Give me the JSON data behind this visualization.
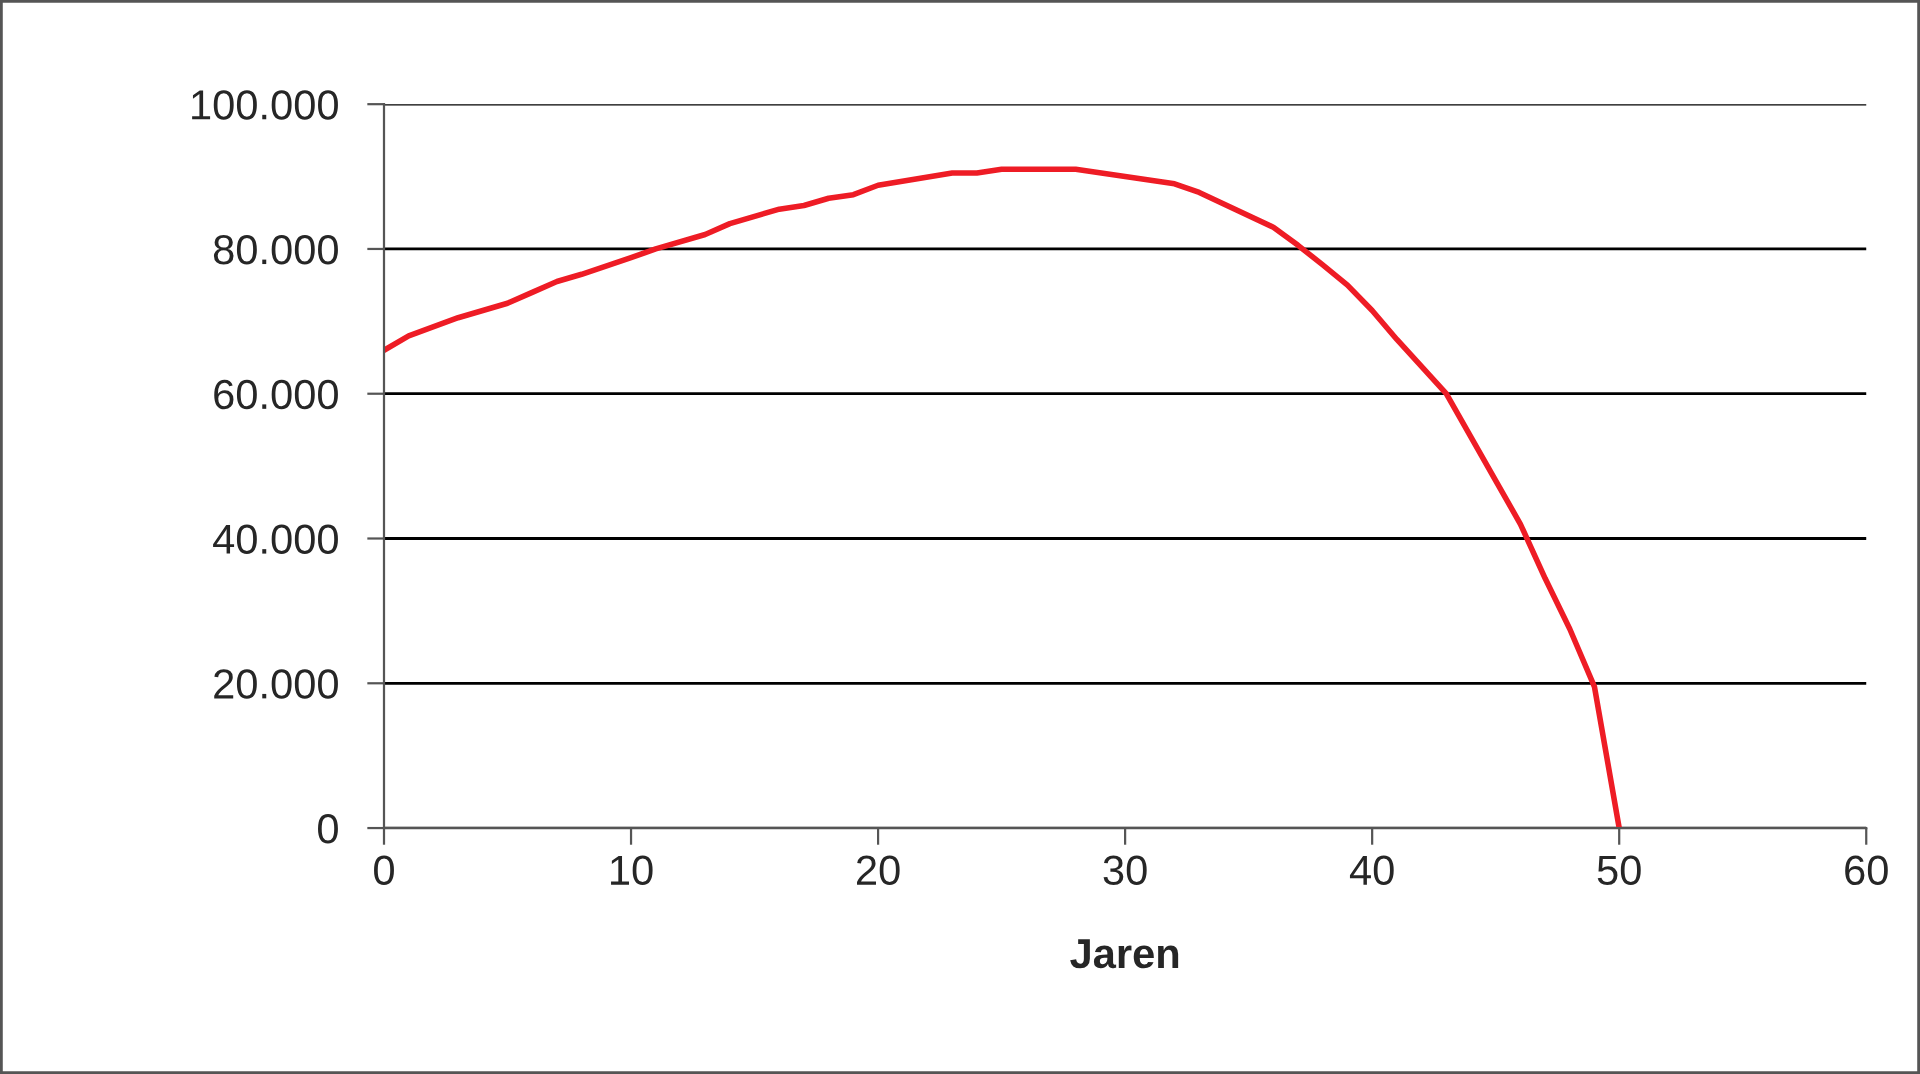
{
  "chart_data": {
    "type": "line",
    "xlabel": "Jaren",
    "x": [
      0,
      1,
      3,
      5,
      6,
      7,
      8,
      10,
      11,
      13,
      14,
      16,
      17,
      18,
      19,
      20,
      23,
      24,
      25,
      28,
      30,
      32,
      33,
      36,
      37,
      38,
      39,
      40,
      41,
      43,
      44,
      45,
      46,
      47,
      48,
      49,
      50
    ],
    "series": [
      {
        "color": "#ee1c25",
        "values": [
          66000,
          68000,
          70500,
          72500,
          74000,
          75500,
          76500,
          78800,
          80000,
          82000,
          83500,
          85500,
          86000,
          87000,
          87500,
          88800,
          90500,
          90500,
          91000,
          91000,
          90000,
          89000,
          87800,
          83000,
          80500,
          77800,
          75000,
          71500,
          67500,
          60000,
          54000,
          48000,
          42000,
          34500,
          27500,
          19500,
          0
        ]
      }
    ],
    "xlim": [
      0,
      60
    ],
    "xticks": [
      0,
      10,
      20,
      30,
      40,
      50,
      60
    ],
    "ylim": [
      0,
      100000
    ],
    "yticks": [
      {
        "value": 0,
        "label": "0"
      },
      {
        "value": 20000,
        "label": "20.000"
      },
      {
        "value": 40000,
        "label": "40.000"
      },
      {
        "value": 60000,
        "label": "60.000"
      },
      {
        "value": 80000,
        "label": "80.000"
      },
      {
        "value": 100000,
        "label": "100.000"
      }
    ],
    "grid": "y",
    "marker": "none",
    "line_style": "solid",
    "legend": false
  }
}
